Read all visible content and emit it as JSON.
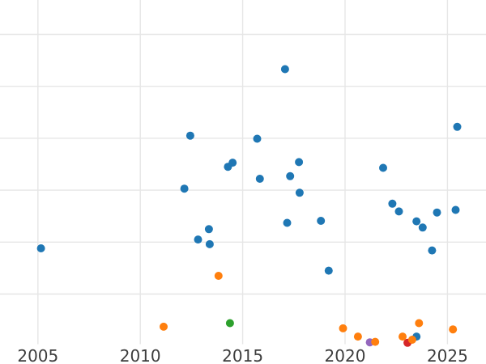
{
  "figure": {
    "background": "#ffffff",
    "grid_color": "#e6e6e6",
    "tick_label_color": "#3d3d3d"
  },
  "chart_data": {
    "type": "scatter",
    "title": "",
    "xlabel": "",
    "ylabel": "",
    "legend": "none",
    "x_tick_labels": [
      "2005",
      "2010",
      "2015",
      "2020",
      "2025"
    ],
    "x_ticks": [
      2005,
      2010,
      2015,
      2020,
      2025
    ],
    "x_range_visible": [
      2003.1,
      2026.9
    ],
    "y_axis_note": "y-axis tick labels are cropped out of view on the left; y values are expressed in gridline units above the x-axis baseline (1 unit = one horizontal gridline spacing)",
    "y_gridline_units": [
      1,
      2,
      3,
      4,
      5,
      6
    ],
    "y_range_visible": [
      -0.35,
      6.66
    ],
    "marker_diameter_px": 10,
    "series": [
      {
        "name": "blue",
        "color": "#1f77b4",
        "points": [
          [
            2005.15,
            1.88
          ],
          [
            2012.15,
            3.03
          ],
          [
            2012.44,
            4.05
          ],
          [
            2012.82,
            2.05
          ],
          [
            2013.35,
            2.25
          ],
          [
            2013.39,
            1.96
          ],
          [
            2014.28,
            3.45
          ],
          [
            2014.51,
            3.53
          ],
          [
            2015.71,
            3.99
          ],
          [
            2015.84,
            3.22
          ],
          [
            2017.07,
            5.33
          ],
          [
            2017.17,
            2.37
          ],
          [
            2017.32,
            3.27
          ],
          [
            2017.75,
            3.54
          ],
          [
            2017.78,
            2.95
          ],
          [
            2018.82,
            2.41
          ],
          [
            2019.2,
            1.45
          ],
          [
            2021.86,
            3.43
          ],
          [
            2022.31,
            2.74
          ],
          [
            2022.63,
            2.59
          ],
          [
            2023.49,
            2.4
          ],
          [
            2023.79,
            2.28
          ],
          [
            2024.25,
            1.84
          ],
          [
            2024.49,
            2.57
          ],
          [
            2025.4,
            2.62
          ],
          [
            2025.48,
            4.22
          ],
          [
            2023.49,
            0.18
          ]
        ]
      },
      {
        "name": "green",
        "color": "#2ca02c",
        "points": [
          [
            2014.38,
            0.44
          ]
        ]
      },
      {
        "name": "purple",
        "color": "#9467bd",
        "points": [
          [
            2021.21,
            0.07
          ]
        ]
      },
      {
        "name": "red",
        "color": "#d62728",
        "points": [
          [
            2023.05,
            0.06
          ]
        ]
      },
      {
        "name": "orange",
        "color": "#ff7f0e",
        "points": [
          [
            2011.14,
            0.37
          ],
          [
            2013.82,
            1.35
          ],
          [
            2019.9,
            0.34
          ],
          [
            2020.63,
            0.18
          ],
          [
            2021.47,
            0.08
          ],
          [
            2022.81,
            0.18
          ],
          [
            2023.28,
            0.12
          ],
          [
            2023.61,
            0.44
          ],
          [
            2025.27,
            0.32
          ]
        ]
      }
    ]
  }
}
